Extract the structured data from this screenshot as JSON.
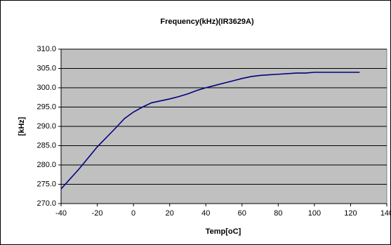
{
  "chart_data": {
    "type": "line",
    "title": "Frequency(kHz)(IR3629A)",
    "x_label": "Temp[oC]",
    "y_label": "[kHz]",
    "x": [
      -40,
      -30,
      -20,
      -10,
      -5,
      0,
      5,
      10,
      15,
      20,
      25,
      30,
      35,
      40,
      45,
      50,
      55,
      60,
      65,
      70,
      80,
      90,
      95,
      100,
      110,
      125
    ],
    "series": [
      {
        "name": "Frequency",
        "color": "#000080",
        "values": [
          273.8,
          279,
          284.7,
          289.5,
          292,
          293.7,
          295,
          296.1,
          296.6,
          297.1,
          297.7,
          298.4,
          299.3,
          300,
          300.6,
          301.2,
          301.8,
          302.4,
          302.9,
          303.2,
          303.5,
          303.8,
          303.8,
          304,
          304,
          304
        ]
      }
    ],
    "xlim": [
      -40,
      140
    ],
    "xticks": [
      -40,
      -20,
      0,
      20,
      40,
      60,
      80,
      100,
      120,
      140
    ],
    "ylim": [
      270,
      310
    ],
    "yticks": [
      {
        "value": 270,
        "label": "270.0"
      },
      {
        "value": 275,
        "label": "275.0"
      },
      {
        "value": 280,
        "label": "280.0"
      },
      {
        "value": 285,
        "label": "285.0"
      },
      {
        "value": 290,
        "label": "290.0"
      },
      {
        "value": 295,
        "label": "295.0"
      },
      {
        "value": 300,
        "label": "300.0"
      },
      {
        "value": 305,
        "label": "305.0"
      },
      {
        "value": 310,
        "label": "310.0"
      }
    ],
    "grid": true,
    "plot_background": "#c0c0c0"
  }
}
